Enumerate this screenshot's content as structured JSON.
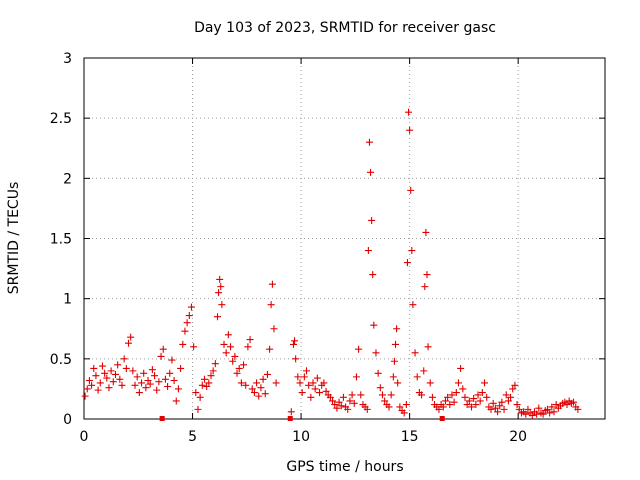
{
  "chart_data": {
    "type": "scatter",
    "title": "Day 103 of 2023, SRMTID for receiver gasc",
    "xlabel": "GPS time / hours",
    "ylabel": "SRMTID / TECUs",
    "xlim": [
      0,
      24
    ],
    "ylim": [
      0,
      3
    ],
    "xticks": [
      0,
      5,
      10,
      15,
      20
    ],
    "xtick_labels": [
      "0",
      "5",
      "10",
      "15",
      "20"
    ],
    "yticks": [
      0,
      0.5,
      1,
      1.5,
      2,
      2.5,
      3
    ],
    "ytick_labels": [
      "0",
      "0.5",
      "1",
      "1.5",
      "2",
      "2.5",
      "3"
    ],
    "grid": true,
    "marker": "+",
    "color": "#e00000",
    "series": [
      {
        "name": "SRMTID",
        "points": [
          [
            0.05,
            0.19
          ],
          [
            0.15,
            0.25
          ],
          [
            0.25,
            0.32
          ],
          [
            0.35,
            0.28
          ],
          [
            0.45,
            0.42
          ],
          [
            0.55,
            0.36
          ],
          [
            0.65,
            0.24
          ],
          [
            0.75,
            0.3
          ],
          [
            0.85,
            0.44
          ],
          [
            0.95,
            0.38
          ],
          [
            1.05,
            0.34
          ],
          [
            1.15,
            0.26
          ],
          [
            1.25,
            0.4
          ],
          [
            1.35,
            0.31
          ],
          [
            1.45,
            0.37
          ],
          [
            1.55,
            0.45
          ],
          [
            1.65,
            0.33
          ],
          [
            1.75,
            0.28
          ],
          [
            1.85,
            0.5
          ],
          [
            1.95,
            0.42
          ],
          [
            2.05,
            0.63
          ],
          [
            2.15,
            0.68
          ],
          [
            2.25,
            0.4
          ],
          [
            2.35,
            0.28
          ],
          [
            2.45,
            0.35
          ],
          [
            2.55,
            0.22
          ],
          [
            2.65,
            0.3
          ],
          [
            2.75,
            0.38
          ],
          [
            2.85,
            0.26
          ],
          [
            2.95,
            0.32
          ],
          [
            3.05,
            0.29
          ],
          [
            3.15,
            0.41
          ],
          [
            3.25,
            0.36
          ],
          [
            3.35,
            0.24
          ],
          [
            3.45,
            0.31
          ],
          [
            3.55,
            0.52
          ],
          [
            3.65,
            0.58
          ],
          [
            3.75,
            0.33
          ],
          [
            3.85,
            0.27
          ],
          [
            3.95,
            0.38
          ],
          [
            4.05,
            0.49
          ],
          [
            4.15,
            0.32
          ],
          [
            4.25,
            0.15
          ],
          [
            4.35,
            0.25
          ],
          [
            4.45,
            0.42
          ],
          [
            4.55,
            0.62
          ],
          [
            4.65,
            0.73
          ],
          [
            4.75,
            0.8
          ],
          [
            4.85,
            0.86
          ],
          [
            4.95,
            0.93
          ],
          [
            5.05,
            0.6
          ],
          [
            5.15,
            0.22
          ],
          [
            5.25,
            0.08
          ],
          [
            5.35,
            0.18
          ],
          [
            5.45,
            0.28
          ],
          [
            5.55,
            0.33
          ],
          [
            5.65,
            0.27
          ],
          [
            5.75,
            0.3
          ],
          [
            5.85,
            0.36
          ],
          [
            5.95,
            0.4
          ],
          [
            6.05,
            0.46
          ],
          [
            6.15,
            0.85
          ],
          [
            6.2,
            1.05
          ],
          [
            6.25,
            1.16
          ],
          [
            6.3,
            1.1
          ],
          [
            6.35,
            0.95
          ],
          [
            6.45,
            0.62
          ],
          [
            6.55,
            0.55
          ],
          [
            6.65,
            0.7
          ],
          [
            6.75,
            0.6
          ],
          [
            6.85,
            0.48
          ],
          [
            6.95,
            0.52
          ],
          [
            7.05,
            0.38
          ],
          [
            7.15,
            0.42
          ],
          [
            7.25,
            0.3
          ],
          [
            7.35,
            0.45
          ],
          [
            7.45,
            0.28
          ],
          [
            7.55,
            0.6
          ],
          [
            7.65,
            0.66
          ],
          [
            7.75,
            0.25
          ],
          [
            7.85,
            0.22
          ],
          [
            7.95,
            0.3
          ],
          [
            8.05,
            0.19
          ],
          [
            8.15,
            0.26
          ],
          [
            8.25,
            0.33
          ],
          [
            8.35,
            0.21
          ],
          [
            8.45,
            0.37
          ],
          [
            8.55,
            0.58
          ],
          [
            8.62,
            0.95
          ],
          [
            8.68,
            1.12
          ],
          [
            8.75,
            0.75
          ],
          [
            8.85,
            0.3
          ],
          [
            9.55,
            0.06
          ],
          [
            9.65,
            0.62
          ],
          [
            9.7,
            0.65
          ],
          [
            9.75,
            0.5
          ],
          [
            9.85,
            0.35
          ],
          [
            9.95,
            0.3
          ],
          [
            10.05,
            0.22
          ],
          [
            10.15,
            0.35
          ],
          [
            10.25,
            0.4
          ],
          [
            10.35,
            0.28
          ],
          [
            10.45,
            0.18
          ],
          [
            10.55,
            0.3
          ],
          [
            10.65,
            0.25
          ],
          [
            10.75,
            0.34
          ],
          [
            10.85,
            0.22
          ],
          [
            10.95,
            0.28
          ],
          [
            11.05,
            0.3
          ],
          [
            11.15,
            0.23
          ],
          [
            11.25,
            0.2
          ],
          [
            11.35,
            0.18
          ],
          [
            11.45,
            0.15
          ],
          [
            11.55,
            0.12
          ],
          [
            11.65,
            0.09
          ],
          [
            11.75,
            0.14
          ],
          [
            11.85,
            0.11
          ],
          [
            11.95,
            0.18
          ],
          [
            12.05,
            0.1
          ],
          [
            12.15,
            0.08
          ],
          [
            12.25,
            0.15
          ],
          [
            12.35,
            0.2
          ],
          [
            12.45,
            0.13
          ],
          [
            12.55,
            0.35
          ],
          [
            12.65,
            0.58
          ],
          [
            12.75,
            0.2
          ],
          [
            12.85,
            0.12
          ],
          [
            12.95,
            0.1
          ],
          [
            13.05,
            0.08
          ],
          [
            13.1,
            1.4
          ],
          [
            13.15,
            2.3
          ],
          [
            13.2,
            2.05
          ],
          [
            13.25,
            1.65
          ],
          [
            13.3,
            1.2
          ],
          [
            13.35,
            0.78
          ],
          [
            13.45,
            0.55
          ],
          [
            13.55,
            0.38
          ],
          [
            13.65,
            0.26
          ],
          [
            13.75,
            0.2
          ],
          [
            13.85,
            0.15
          ],
          [
            13.95,
            0.12
          ],
          [
            14.05,
            0.1
          ],
          [
            14.15,
            0.2
          ],
          [
            14.25,
            0.35
          ],
          [
            14.3,
            0.48
          ],
          [
            14.35,
            0.62
          ],
          [
            14.4,
            0.75
          ],
          [
            14.45,
            0.3
          ],
          [
            14.55,
            0.1
          ],
          [
            14.65,
            0.07
          ],
          [
            14.75,
            0.05
          ],
          [
            14.85,
            0.12
          ],
          [
            14.9,
            1.3
          ],
          [
            14.95,
            2.55
          ],
          [
            15.0,
            2.4
          ],
          [
            15.05,
            1.9
          ],
          [
            15.1,
            1.4
          ],
          [
            15.15,
            0.95
          ],
          [
            15.25,
            0.55
          ],
          [
            15.35,
            0.35
          ],
          [
            15.45,
            0.22
          ],
          [
            15.55,
            0.2
          ],
          [
            15.65,
            0.4
          ],
          [
            15.7,
            1.1
          ],
          [
            15.75,
            1.55
          ],
          [
            15.8,
            1.2
          ],
          [
            15.85,
            0.6
          ],
          [
            15.95,
            0.3
          ],
          [
            16.05,
            0.18
          ],
          [
            16.15,
            0.12
          ],
          [
            16.25,
            0.1
          ],
          [
            16.35,
            0.08
          ],
          [
            16.45,
            0.12
          ],
          [
            16.55,
            0.1
          ],
          [
            16.65,
            0.15
          ],
          [
            16.75,
            0.18
          ],
          [
            16.85,
            0.12
          ],
          [
            16.95,
            0.2
          ],
          [
            17.05,
            0.14
          ],
          [
            17.15,
            0.22
          ],
          [
            17.25,
            0.3
          ],
          [
            17.35,
            0.42
          ],
          [
            17.45,
            0.25
          ],
          [
            17.55,
            0.18
          ],
          [
            17.65,
            0.12
          ],
          [
            17.75,
            0.15
          ],
          [
            17.85,
            0.1
          ],
          [
            17.95,
            0.17
          ],
          [
            18.05,
            0.12
          ],
          [
            18.15,
            0.2
          ],
          [
            18.25,
            0.15
          ],
          [
            18.35,
            0.22
          ],
          [
            18.45,
            0.3
          ],
          [
            18.55,
            0.18
          ],
          [
            18.65,
            0.1
          ],
          [
            18.75,
            0.08
          ],
          [
            18.85,
            0.13
          ],
          [
            18.95,
            0.09
          ],
          [
            19.05,
            0.06
          ],
          [
            19.15,
            0.11
          ],
          [
            19.25,
            0.14
          ],
          [
            19.35,
            0.08
          ],
          [
            19.45,
            0.2
          ],
          [
            19.55,
            0.15
          ],
          [
            19.65,
            0.18
          ],
          [
            19.75,
            0.25
          ],
          [
            19.85,
            0.28
          ],
          [
            19.95,
            0.12
          ],
          [
            20.05,
            0.08
          ],
          [
            20.15,
            0.05
          ],
          [
            20.25,
            0.06
          ],
          [
            20.35,
            0.04
          ],
          [
            20.45,
            0.08
          ],
          [
            20.55,
            0.05
          ],
          [
            20.65,
            0.03
          ],
          [
            20.75,
            0.06
          ],
          [
            20.85,
            0.04
          ],
          [
            20.95,
            0.09
          ],
          [
            21.05,
            0.05
          ],
          [
            21.15,
            0.04
          ],
          [
            21.25,
            0.07
          ],
          [
            21.35,
            0.08
          ],
          [
            21.45,
            0.05
          ],
          [
            21.55,
            0.1
          ],
          [
            21.65,
            0.06
          ],
          [
            21.75,
            0.12
          ],
          [
            21.85,
            0.09
          ],
          [
            21.95,
            0.11
          ],
          [
            22.05,
            0.13
          ],
          [
            22.15,
            0.14
          ],
          [
            22.25,
            0.12
          ],
          [
            22.35,
            0.15
          ],
          [
            22.45,
            0.13
          ],
          [
            22.55,
            0.14
          ],
          [
            22.65,
            0.1
          ],
          [
            22.75,
            0.08
          ]
        ]
      }
    ],
    "axis_markers": [
      3.6,
      9.5,
      16.5
    ]
  }
}
